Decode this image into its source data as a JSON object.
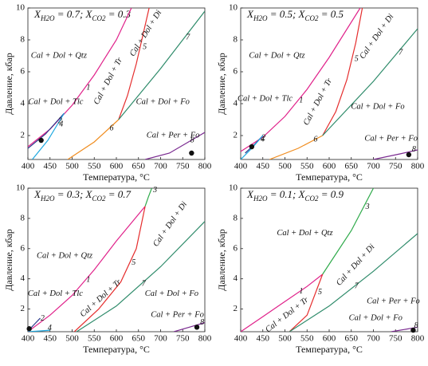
{
  "chart_data": [
    {
      "type": "line",
      "title": [
        "X",
        "H2O",
        " = 0.7; X",
        "CO2",
        " = 0.3"
      ],
      "xlabel": "Температура, °C",
      "ylabel": "Давление, кбар",
      "xlim": [
        400,
        800
      ],
      "ylim": [
        0.5,
        10
      ],
      "xticks": [
        400,
        450,
        500,
        550,
        600,
        650,
        700,
        750,
        800
      ],
      "yticks": [
        2,
        4,
        6,
        8,
        10
      ],
      "series": [
        {
          "name": "1",
          "color": "#e0218a",
          "x": [
            400,
            450,
            500,
            550,
            600,
            634
          ],
          "values": [
            1.3,
            2.4,
            3.9,
            5.8,
            8.0,
            10
          ]
        },
        {
          "name": "2",
          "color": "#2b3a8c",
          "x": [
            400,
            440,
            482
          ],
          "values": [
            1.2,
            2.1,
            3.4
          ]
        },
        {
          "name": "4",
          "color": "#1ea8e0",
          "x": [
            410,
            445,
            482
          ],
          "values": [
            0.5,
            1.7,
            3.4
          ]
        },
        {
          "name": "5",
          "color": "#e52d2d",
          "x": [
            605,
            625,
            645,
            660,
            674
          ],
          "values": [
            3.0,
            4.5,
            6.5,
            8.3,
            10
          ]
        },
        {
          "name": "6",
          "color": "#f08c1e",
          "x": [
            490,
            550,
            605
          ],
          "values": [
            0.5,
            1.6,
            3.0
          ]
        },
        {
          "name": "7",
          "color": "#2e8b6a",
          "x": [
            605,
            700,
            800
          ],
          "values": [
            3.0,
            6.2,
            9.8
          ]
        },
        {
          "name": "8",
          "color": "#7a2a90",
          "x": [
            665,
            720,
            800
          ],
          "values": [
            0.5,
            0.9,
            2.2
          ]
        }
      ],
      "annotations": [
        "Cal + Dol + Qtz",
        "Cal + Dol + Tlc",
        "Cal + Dol + Tr",
        "Cal + Dol + Di",
        "Cal + Dol + Fo",
        "Cal + Per + Fo"
      ],
      "points": [
        {
          "x": 430,
          "y": 1.7
        },
        {
          "x": 770,
          "y": 0.9
        }
      ]
    },
    {
      "type": "line",
      "title": [
        "X",
        "H2O",
        " = 0.5; X",
        "CO2",
        " = 0.5"
      ],
      "xlabel": "Температура, °C",
      "ylabel": "Давление, кбар",
      "xlim": [
        400,
        800
      ],
      "ylim": [
        0.5,
        10
      ],
      "xticks": [
        400,
        450,
        500,
        550,
        600,
        650,
        700,
        750,
        800
      ],
      "yticks": [
        2,
        4,
        6,
        8,
        10
      ],
      "series": [
        {
          "name": "1",
          "color": "#e0218a",
          "x": [
            400,
            450,
            500,
            550,
            600,
            670
          ],
          "values": [
            1.0,
            1.9,
            3.2,
            4.9,
            6.9,
            10
          ]
        },
        {
          "name": "2",
          "color": "#2b3a8c",
          "x": [
            410,
            430,
            450
          ],
          "values": [
            0.9,
            1.4,
            2.0
          ]
        },
        {
          "name": "4",
          "color": "#1ea8e0",
          "x": [
            400,
            425,
            450
          ],
          "values": [
            0.5,
            1.2,
            2.0
          ]
        },
        {
          "name": "5",
          "color": "#e52d2d",
          "x": [
            585,
            615,
            640,
            660,
            675
          ],
          "values": [
            2.0,
            3.5,
            5.5,
            7.8,
            10
          ]
        },
        {
          "name": "6",
          "color": "#f08c1e",
          "x": [
            465,
            530,
            585
          ],
          "values": [
            0.5,
            1.2,
            2.0
          ]
        },
        {
          "name": "7",
          "color": "#2e8b6a",
          "x": [
            585,
            700,
            800
          ],
          "values": [
            2.0,
            5.4,
            8.7
          ]
        },
        {
          "name": "8",
          "color": "#7a2a90",
          "x": [
            700,
            760,
            800
          ],
          "values": [
            0.5,
            0.85,
            1.1
          ]
        }
      ],
      "annotations": [
        "Cal + Dol + Qtz",
        "Cal + Dol + Tlc",
        "Cal + Dol + Tr",
        "Cal + Dol + Di",
        "Cal + Dol + Fo",
        "Cal + Per + Fo"
      ],
      "points": [
        {
          "x": 425,
          "y": 1.3
        },
        {
          "x": 780,
          "y": 0.8
        }
      ]
    },
    {
      "type": "line",
      "title": [
        "X",
        "H2O",
        " = 0.3; X",
        "CO2",
        " = 0.7"
      ],
      "xlabel": "Температура, °C",
      "ylabel": "Давление, кбар",
      "xlim": [
        400,
        800
      ],
      "ylim": [
        0.5,
        10
      ],
      "xticks": [
        400,
        450,
        500,
        550,
        600,
        650,
        700,
        750,
        800
      ],
      "yticks": [
        2,
        4,
        6,
        8,
        10
      ],
      "series": [
        {
          "name": "1",
          "color": "#e0218a",
          "x": [
            400,
            450,
            500,
            550,
            600,
            665
          ],
          "values": [
            0.5,
            1.6,
            2.9,
            4.6,
            6.5,
            8.8
          ]
        },
        {
          "name": "2",
          "color": "#2b3a8c",
          "x": [
            402,
            415,
            428
          ],
          "values": [
            0.6,
            1.0,
            1.4
          ]
        },
        {
          "name": "3",
          "color": "#2eaa4a",
          "x": [
            665,
            672,
            680
          ],
          "values": [
            8.8,
            9.4,
            10
          ]
        },
        {
          "name": "4",
          "color": "#1ea8e0",
          "x": [
            400,
            425,
            450
          ],
          "values": [
            0.5,
            0.55,
            0.6
          ]
        },
        {
          "name": "5",
          "color": "#e52d2d",
          "x": [
            505,
            560,
            610,
            645,
            665
          ],
          "values": [
            0.5,
            2.0,
            3.8,
            6.0,
            8.8
          ]
        },
        {
          "name": "7",
          "color": "#2e8b6a",
          "x": [
            510,
            600,
            700,
            800
          ],
          "values": [
            0.5,
            2.2,
            4.8,
            7.8
          ]
        },
        {
          "name": "8",
          "color": "#7a2a90",
          "x": [
            730,
            765,
            800
          ],
          "values": [
            0.5,
            0.8,
            1.1
          ]
        }
      ],
      "annotations": [
        "Cal + Dol + Qtz",
        "Cal + Dol + Tlc",
        "Cal + Dol + Tr",
        "Cal + Dol + Di",
        "Cal + Dol + Fo",
        "Cal + Per + Fo"
      ],
      "points": [
        {
          "x": 403,
          "y": 0.7
        },
        {
          "x": 782,
          "y": 0.8
        }
      ]
    },
    {
      "type": "line",
      "title": [
        "X",
        "H2O",
        " = 0.1; X",
        "CO2",
        " = 0.9"
      ],
      "xlabel": "Температура, °C",
      "ylabel": "Давление, кбар",
      "xlim": [
        400,
        800
      ],
      "ylim": [
        0.5,
        10
      ],
      "xticks": [
        400,
        450,
        500,
        550,
        600,
        650,
        700,
        750,
        800
      ],
      "yticks": [
        2,
        4,
        6,
        8,
        10
      ],
      "series": [
        {
          "name": "1",
          "color": "#e0218a",
          "x": [
            400,
            450,
            500,
            550,
            585
          ],
          "values": [
            0.5,
            1.5,
            2.5,
            3.5,
            4.3
          ]
        },
        {
          "name": "3",
          "color": "#2eaa4a",
          "x": [
            585,
            650,
            700
          ],
          "values": [
            4.3,
            7.2,
            10
          ]
        },
        {
          "name": "5",
          "color": "#e52d2d",
          "x": [
            510,
            550,
            585
          ],
          "values": [
            0.5,
            1.6,
            4.3
          ]
        },
        {
          "name": "7",
          "color": "#2e8b6a",
          "x": [
            510,
            600,
            700,
            800
          ],
          "values": [
            0.5,
            2.2,
            4.5,
            7.0
          ]
        },
        {
          "name": "8",
          "color": "#7a2a90",
          "x": [
            740,
            770,
            800
          ],
          "values": [
            0.5,
            0.65,
            0.8
          ]
        }
      ],
      "annotations": [
        "Cal + Dol + Qtz",
        "Cal + Dol + Tr",
        "Cal + Dol + Di",
        "Cal + Dol + Fo",
        "Cal + Per + Fo"
      ],
      "points": [
        {
          "x": 790,
          "y": 0.6
        }
      ]
    }
  ]
}
